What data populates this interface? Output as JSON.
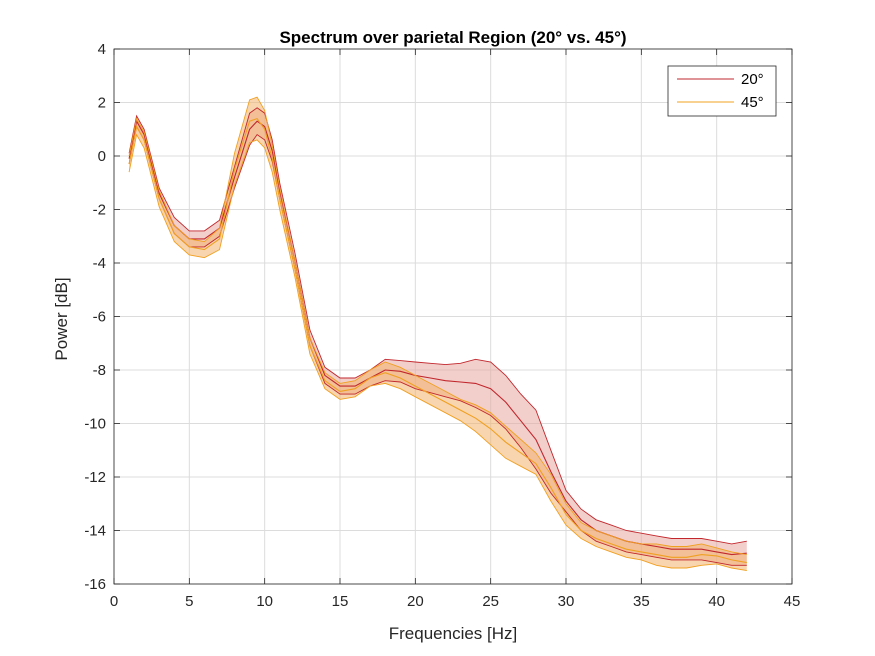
{
  "chart_data": {
    "type": "line",
    "title": "Spectrum over parietal Region (20° vs. 45°)",
    "xlabel": "Frequencies [Hz]",
    "ylabel": "Power [dB]",
    "xlim": [
      0,
      45
    ],
    "ylim": [
      -16,
      4
    ],
    "xticks": [
      0,
      5,
      10,
      15,
      20,
      25,
      30,
      35,
      40,
      45
    ],
    "yticks": [
      -16,
      -14,
      -12,
      -10,
      -8,
      -6,
      -4,
      -2,
      0,
      2,
      4
    ],
    "grid": true,
    "legend_position": "top-right",
    "series": [
      {
        "name": "20°",
        "color": "#c1272d",
        "fill": "#e8a8a0",
        "x": [
          1,
          1.5,
          2,
          3,
          4,
          5,
          6,
          7,
          8,
          9,
          9.5,
          10,
          10.5,
          11,
          12,
          13,
          14,
          15,
          16,
          17,
          18,
          19,
          20,
          21,
          22,
          23,
          24,
          25,
          26,
          27,
          28,
          29,
          30,
          31,
          32,
          33,
          34,
          35,
          36,
          37,
          38,
          39,
          40,
          41,
          42
        ],
        "mean": [
          -0.1,
          1.3,
          0.8,
          -1.4,
          -2.6,
          -3.1,
          -3.1,
          -2.7,
          -0.8,
          1.0,
          1.3,
          1.1,
          0.2,
          -1.3,
          -3.9,
          -6.8,
          -8.2,
          -8.6,
          -8.6,
          -8.3,
          -8.0,
          -8.05,
          -8.2,
          -8.3,
          -8.4,
          -8.45,
          -8.5,
          -8.7,
          -9.2,
          -9.9,
          -10.6,
          -11.8,
          -12.9,
          -13.6,
          -14.0,
          -14.2,
          -14.4,
          -14.5,
          -14.6,
          -14.7,
          -14.7,
          -14.7,
          -14.8,
          -14.9,
          -14.85
        ],
        "upper": [
          0.1,
          1.5,
          1.0,
          -1.2,
          -2.3,
          -2.8,
          -2.8,
          -2.4,
          -0.4,
          1.6,
          1.8,
          1.6,
          0.6,
          -1.0,
          -3.6,
          -6.5,
          -7.9,
          -8.3,
          -8.3,
          -8.0,
          -7.6,
          -7.65,
          -7.7,
          -7.75,
          -7.8,
          -7.75,
          -7.6,
          -7.7,
          -8.2,
          -8.9,
          -9.5,
          -11.0,
          -12.5,
          -13.2,
          -13.6,
          -13.8,
          -14.0,
          -14.1,
          -14.2,
          -14.3,
          -14.3,
          -14.3,
          -14.4,
          -14.5,
          -14.4
        ]
      },
      {
        "name": "45°",
        "color": "#f0a020",
        "fill": "#f3b26e",
        "x": [
          1,
          1.5,
          2,
          3,
          4,
          5,
          6,
          7,
          8,
          9,
          9.5,
          10,
          10.5,
          11,
          12,
          13,
          14,
          15,
          16,
          17,
          18,
          19,
          20,
          21,
          22,
          23,
          24,
          25,
          26,
          27,
          28,
          29,
          30,
          31,
          32,
          33,
          34,
          35,
          36,
          37,
          38,
          39,
          40,
          41,
          42
        ],
        "mean": [
          -0.3,
          1.1,
          0.6,
          -1.6,
          -2.9,
          -3.4,
          -3.5,
          -3.1,
          -0.5,
          1.3,
          1.4,
          1.0,
          -0.1,
          -1.6,
          -4.2,
          -7.1,
          -8.4,
          -8.8,
          -8.7,
          -8.3,
          -8.1,
          -8.3,
          -8.6,
          -8.9,
          -9.2,
          -9.5,
          -9.8,
          -10.2,
          -10.7,
          -11.1,
          -11.5,
          -12.4,
          -13.4,
          -14.0,
          -14.3,
          -14.5,
          -14.7,
          -14.8,
          -14.9,
          -15.0,
          -15.0,
          -14.9,
          -14.95,
          -15.1,
          -15.2
        ],
        "lower": [
          -0.6,
          0.8,
          0.3,
          -1.9,
          -3.2,
          -3.7,
          -3.8,
          -3.5,
          -1.1,
          0.5,
          0.6,
          0.3,
          -0.6,
          -2.0,
          -4.5,
          -7.4,
          -8.7,
          -9.1,
          -9.0,
          -8.6,
          -8.5,
          -8.7,
          -9.0,
          -9.3,
          -9.6,
          -9.9,
          -10.3,
          -10.8,
          -11.3,
          -11.6,
          -11.9,
          -12.9,
          -13.8,
          -14.3,
          -14.6,
          -14.8,
          -15.0,
          -15.1,
          -15.3,
          -15.4,
          -15.4,
          -15.3,
          -15.25,
          -15.4,
          -15.5
        ]
      }
    ]
  }
}
